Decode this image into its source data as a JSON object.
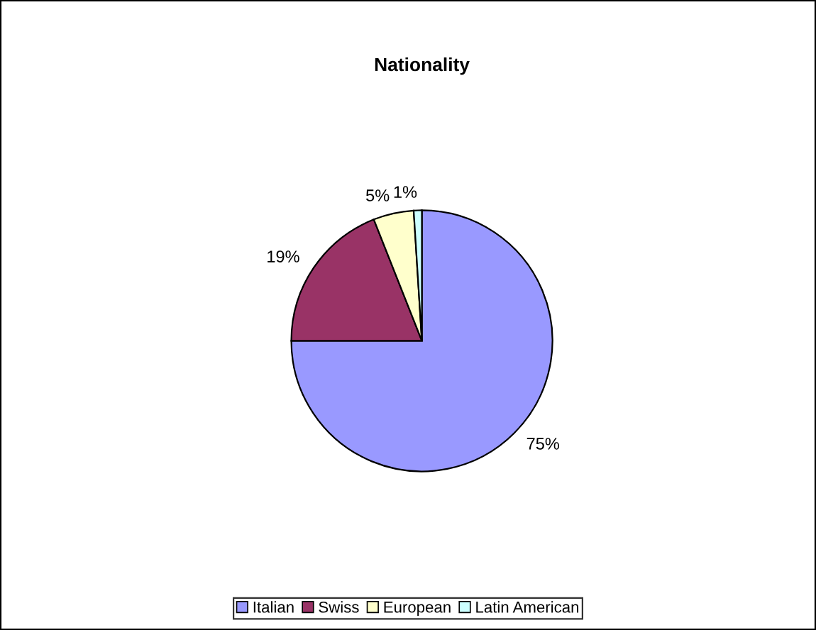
{
  "chart_data": {
    "type": "pie",
    "title": "Nationality",
    "categories": [
      "Italian",
      "Swiss",
      "European",
      "Latin American"
    ],
    "values": [
      75,
      19,
      5,
      1
    ],
    "colors": [
      "#9999ff",
      "#993366",
      "#ffffcc",
      "#ccffff"
    ],
    "value_labels": [
      "75%",
      "19%",
      "5%",
      "1%"
    ],
    "legend": "bottom"
  }
}
